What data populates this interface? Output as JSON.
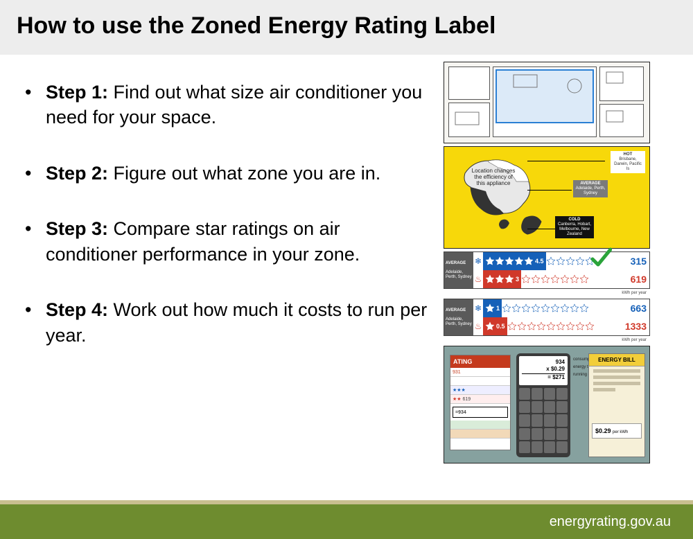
{
  "title": "How to use the Zoned Energy Rating Label",
  "steps": [
    {
      "label": "Step 1:",
      "text": " Find out what size air conditioner you need for your space."
    },
    {
      "label": "Step 2:",
      "text": " Figure out what zone you are in."
    },
    {
      "label": "Step 3:",
      "text": " Compare star ratings on air conditioner performance in your zone."
    },
    {
      "label": "Step 4:",
      "text": " Work out how much it costs to run per year."
    }
  ],
  "footer": "energyrating.gov.au",
  "colors": {
    "header_bg": "#ededed",
    "map_bg": "#f7d80a",
    "calc_bg": "#86a19f",
    "footer_bg": "#6e8c2f",
    "footer_accent": "#c9bf8f",
    "star_blue": "#1560b8",
    "star_red": "#d0392a",
    "check_green": "#2aa33a",
    "blue_highlight": "#2a7fd4"
  },
  "map": {
    "caption": "Location changes the efficiency of this appliance",
    "zones": {
      "hot": {
        "label": "HOT",
        "cities": "Brisbane, Darwin, Pacific Is",
        "bg": "#ffffff",
        "fg": "#333"
      },
      "avg": {
        "label": "AVERAGE",
        "cities": "Adelaide, Perth, Sydney",
        "bg": "#7a7a7a",
        "fg": "#fff"
      },
      "cold": {
        "label": "COLD",
        "cities": "Canberra, Hobart, Melbourne, New Zealand",
        "bg": "#111",
        "fg": "#fff"
      }
    }
  },
  "ratings": {
    "group_label": "AVERAGE Adelaide, Perth, Sydney",
    "kwh_label": "kWh per year",
    "groups": [
      {
        "rows": [
          {
            "type": "cool",
            "filled": 4.5,
            "total": 10,
            "value": 315,
            "color": "#1560b8",
            "fill_bg": "#1560b8"
          },
          {
            "type": "heat",
            "filled": 3,
            "total": 10,
            "value": 619,
            "color": "#d0392a",
            "fill_bg": "#d0392a"
          }
        ],
        "check": true
      },
      {
        "rows": [
          {
            "type": "cool",
            "filled": 1,
            "total": 10,
            "value": 663,
            "color": "#1560b8",
            "fill_bg": "#1560b8"
          },
          {
            "type": "heat",
            "filled": 0.5,
            "total": 10,
            "value": 1333,
            "color": "#d0392a",
            "fill_bg": "#d0392a"
          }
        ],
        "check": false
      }
    ]
  },
  "calc": {
    "rating_header": "ATING",
    "eq_label": "=934",
    "display": {
      "l1": "934",
      "l2": "x $0.29",
      "l3": "= $271"
    },
    "side": [
      "consumption",
      "energy tariff",
      "running cost per year"
    ],
    "bill_header": "ENERGY BILL",
    "bill_price": "$0.29",
    "bill_price_sub": "per kWh",
    "strip_values": [
      "931",
      "",
      "619",
      ""
    ]
  }
}
